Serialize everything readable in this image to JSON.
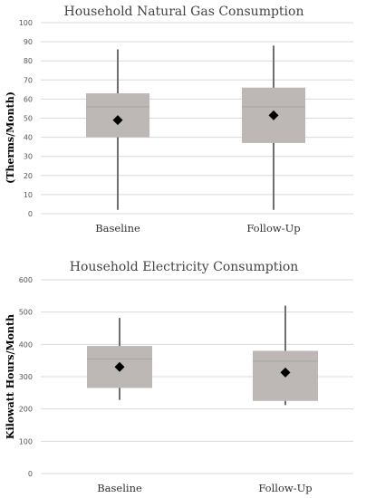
{
  "chart_data": [
    {
      "type": "box",
      "title": "Household Natural Gas Consumption",
      "ylabel": "(Therms/Month)",
      "ylim": [
        0,
        100
      ],
      "yticks": [
        0,
        10,
        20,
        30,
        40,
        50,
        60,
        70,
        80,
        90,
        100
      ],
      "categories": [
        "Baseline",
        "Follow-Up"
      ],
      "grid": true,
      "boxes": [
        {
          "category": "Baseline",
          "min": 2,
          "q1": 40,
          "median": 56,
          "q3": 63,
          "max": 86,
          "mean": 49
        },
        {
          "category": "Follow-Up",
          "min": 2,
          "q1": 37,
          "median": 56,
          "q3": 66,
          "max": 88,
          "mean": 51.5
        }
      ]
    },
    {
      "type": "box",
      "title": "Household Electricity Consumption",
      "ylabel": "Kilowatt Hours/Month",
      "ylim": [
        0,
        600
      ],
      "yticks": [
        0,
        100,
        200,
        300,
        400,
        500,
        600
      ],
      "categories": [
        "Baseline",
        "Follow-Up"
      ],
      "grid": true,
      "boxes": [
        {
          "category": "Baseline",
          "min": 228,
          "q1": 265,
          "median": 355,
          "q3": 395,
          "max": 482,
          "mean": 330
        },
        {
          "category": "Follow-Up",
          "min": 212,
          "q1": 225,
          "median": 348,
          "q3": 380,
          "max": 520,
          "mean": 313
        }
      ]
    }
  ]
}
